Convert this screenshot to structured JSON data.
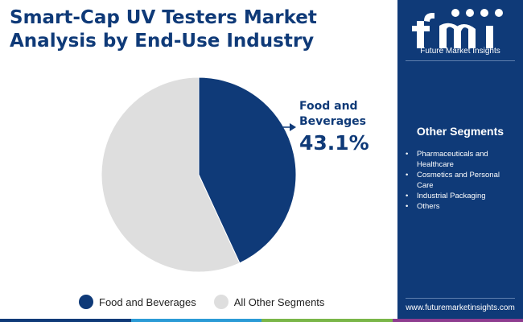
{
  "header": {
    "title_line1": "Smart-Cap UV Testers Market",
    "title_line2": "Analysis by End-Use Industry"
  },
  "chart_data": {
    "type": "pie",
    "title": "Smart-Cap UV Testers Market Analysis by End-Use Industry",
    "slices": [
      {
        "label": "Food and Beverages",
        "value": 43.1,
        "color": "#0f3a78"
      },
      {
        "label": "All Other Segments",
        "value": 56.9,
        "color": "#dedede"
      }
    ],
    "callout": {
      "label_line1": "Food and",
      "label_line2": "Beverages",
      "value_text": "43.1%"
    },
    "legend": [
      {
        "label": "Food and Beverages",
        "color": "#0f3a78"
      },
      {
        "label": "All Other Segments",
        "color": "#dedede"
      }
    ],
    "legend_position": "bottom"
  },
  "sidebar": {
    "logo_text": "Future Market Insights",
    "other_segments_title": "Other Segments",
    "other_segments": [
      "Pharmaceuticals and Healthcare",
      "Cosmetics and Personal Care",
      "Industrial Packaging",
      "Others"
    ],
    "website": "www.futuremarketinsights.com"
  },
  "colors": {
    "brand": "#0f3a78",
    "other": "#dedede",
    "bottom_bar": [
      "#0f3a78",
      "#2b9bd6",
      "#7ab648",
      "#8e3c8f"
    ]
  }
}
